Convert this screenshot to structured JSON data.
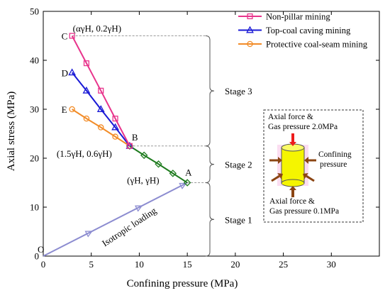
{
  "chart_data": {
    "type": "line",
    "xlabel": "Confining pressure (MPa)",
    "ylabel": "Axial stress (MPa)",
    "xlim": [
      0,
      35
    ],
    "ylim": [
      0,
      50
    ],
    "xticks": [
      0,
      5,
      10,
      15,
      20,
      25,
      30
    ],
    "yticks": [
      0,
      10,
      20,
      30,
      40,
      50
    ],
    "grid": false,
    "legend_position": "top-right",
    "series": [
      {
        "name": "Non-pillar mining",
        "color": "#e8348c",
        "marker": "square",
        "x": [
          3,
          4.5,
          6,
          7.5,
          9
        ],
        "y": [
          45,
          39.4,
          33.8,
          28.1,
          22.5
        ]
      },
      {
        "name": "Top-coal caving mining",
        "color": "#1a1ad6",
        "marker": "triangle",
        "x": [
          3,
          4.5,
          6,
          7.5,
          9
        ],
        "y": [
          37.5,
          33.8,
          30,
          26.3,
          22.5
        ]
      },
      {
        "name": "Protective coal-seam mining",
        "color": "#f28c28",
        "marker": "circle",
        "x": [
          3,
          4.5,
          6,
          7.5,
          9
        ],
        "y": [
          30,
          28.1,
          26.3,
          24.4,
          22.5
        ]
      }
    ],
    "extra_lines": [
      {
        "color": "#1e7b1e",
        "marker": "diamond",
        "x": [
          9,
          10.5,
          12,
          13.5,
          15
        ],
        "y": [
          22.5,
          20.6,
          18.8,
          16.9,
          15
        ]
      },
      {
        "color": "#8c8cd0",
        "marker": "arrow",
        "x": [
          0,
          15
        ],
        "y": [
          0,
          15
        ],
        "arrow_points": [
          [
            4.8,
            4.8
          ],
          [
            10,
            10
          ],
          [
            14.6,
            14.6
          ]
        ]
      }
    ],
    "points": [
      {
        "label": "O",
        "x": 0,
        "y": 0
      },
      {
        "label": "A",
        "x": 15,
        "y": 15
      },
      {
        "label": "B",
        "x": 9,
        "y": 22.5
      },
      {
        "label": "C",
        "x": 3,
        "y": 45
      },
      {
        "label": "D",
        "x": 3,
        "y": 37.5
      },
      {
        "label": "E",
        "x": 3,
        "y": 30
      }
    ],
    "annotations": [
      {
        "text": "(αγH, 0.2γH)",
        "x": 3,
        "y": 45
      },
      {
        "text": "(1.5γH, 0.6γH)",
        "x": 9,
        "y": 22.5
      },
      {
        "text": "(γH, γH)",
        "x": 15,
        "y": 15
      },
      {
        "text": "Isotropic loading",
        "x": 10,
        "y": 10
      }
    ],
    "stages": [
      {
        "label": "Stage 3",
        "y_range": [
          22.5,
          45
        ]
      },
      {
        "label": "Stage 2",
        "y_range": [
          15,
          22.5
        ]
      },
      {
        "label": "Stage 1",
        "y_range": [
          0,
          15
        ]
      }
    ],
    "inset": {
      "top_text": [
        "Axial force &",
        "Gas pressure 2.0MPa"
      ],
      "right_text": [
        "Confining",
        "pressure"
      ],
      "bottom_text": [
        "Axial force &",
        "Gas pressure 0.1MPa"
      ],
      "cylinder_color": "#f5f500",
      "axial_arrow_color": "#ee1c1c",
      "confining_arrow_color": "#8b4513",
      "glow_color": "#f7b4e0"
    }
  }
}
